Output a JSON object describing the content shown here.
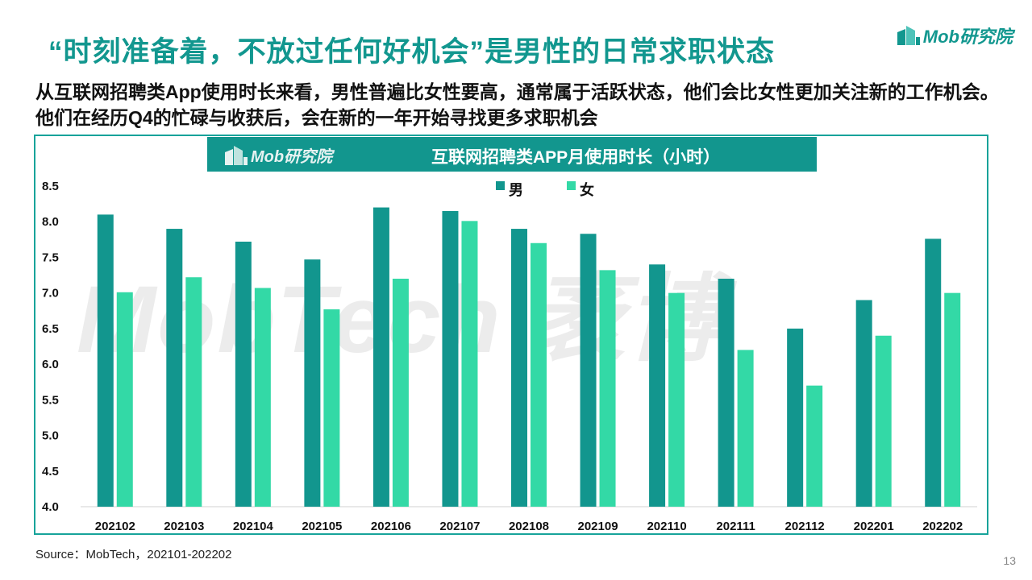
{
  "header": {
    "title": "“时刻准备着，不放过任何好机会”是男性的日常求职状态",
    "logo_text": "Mob研究院"
  },
  "subtitle": "从互联网招聘类App使用时长来看，男性普遍比女性要高，通常属于活跃状态，他们会比女性更加关注新的工作机会。他们在经历Q4的忙碌与收获后，会在新的一年开始寻找更多求职机会",
  "banner": {
    "logo_text": "Mob研究院",
    "title": "互联网招聘类APP月使用时长（小时）"
  },
  "watermark": "MobTech 袤博",
  "source": "Source：MobTech，202101-202202",
  "page_number": "13",
  "colors": {
    "accent": "#12978f",
    "male": "#12968e",
    "female": "#33d9a6"
  },
  "chart_data": {
    "type": "bar",
    "title": "互联网招聘类APP月使用时长（小时）",
    "xlabel": "",
    "ylabel": "",
    "ylim": [
      4.0,
      8.5
    ],
    "yticks": [
      "4.0",
      "4.5",
      "5.0",
      "5.5",
      "6.0",
      "6.5",
      "7.0",
      "7.5",
      "8.0",
      "8.5"
    ],
    "grid": false,
    "legend_position": "top-center",
    "categories": [
      "202102",
      "202103",
      "202104",
      "202105",
      "202106",
      "202107",
      "202108",
      "202109",
      "202110",
      "202111",
      "202112",
      "202201",
      "202202"
    ],
    "series": [
      {
        "name": "男",
        "color": "#12968e",
        "values": [
          8.1,
          7.9,
          7.72,
          7.47,
          8.2,
          8.15,
          7.9,
          7.83,
          7.4,
          7.2,
          6.5,
          6.9,
          7.76
        ]
      },
      {
        "name": "女",
        "color": "#33d9a6",
        "values": [
          7.01,
          7.22,
          7.07,
          6.77,
          7.2,
          8.01,
          7.7,
          7.32,
          7.0,
          6.2,
          5.7,
          6.4,
          7.0
        ]
      }
    ]
  }
}
